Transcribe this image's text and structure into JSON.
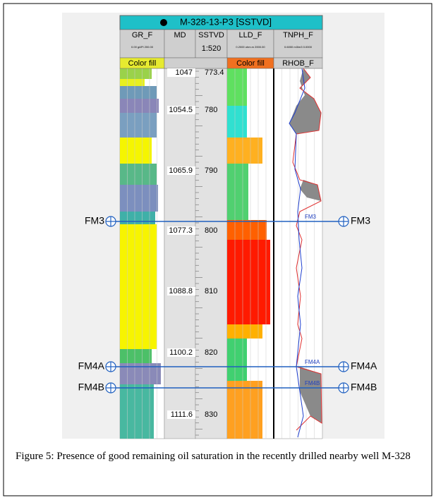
{
  "header": {
    "title": "M-328-13-P3 [SSTVD]"
  },
  "columns": [
    {
      "name": "GR_F",
      "scale": "0.00 gAPI 200.00"
    },
    {
      "name": "MD"
    },
    {
      "name": "SSTVD",
      "scale": "1:520"
    },
    {
      "name": "LLD_F",
      "scale": "0.2000 ohm.m 2000.00"
    },
    {
      "name": "TNPH_F",
      "scale": "0.6000 m3/m3 0.0000"
    }
  ],
  "fills": [
    "Color fill",
    "Color fill",
    "RHOB_F"
  ],
  "md_labels": [
    "1047",
    "1054.5",
    "1065.9",
    "1077.3",
    "1088.8",
    "1100.2",
    "1111.6"
  ],
  "sstvd_labels": [
    "773.4",
    "780",
    "790",
    "800",
    "810",
    "820",
    "830"
  ],
  "formations": [
    {
      "name": "FM3",
      "tag": "FM3"
    },
    {
      "name": "FM4A",
      "tag": "FM4A"
    },
    {
      "name": "FM4B",
      "tag": "FM4B"
    }
  ],
  "caption": "Figure 5: Presence of good remaining oil saturation in the recently drilled nearby well M-328"
}
